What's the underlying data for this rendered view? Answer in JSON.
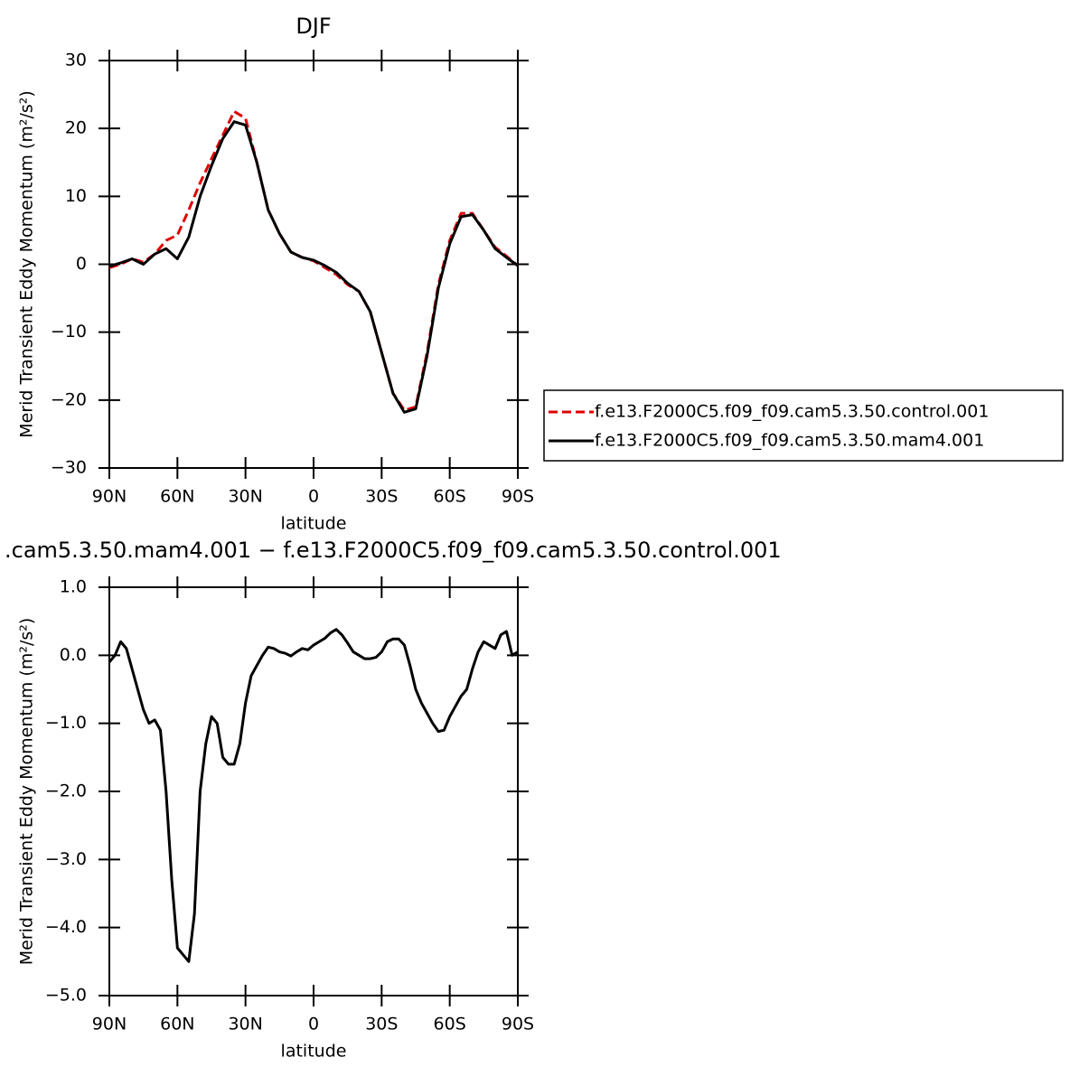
{
  "chart_data": [
    {
      "type": "line",
      "title": "DJF",
      "x_label": "latitude",
      "y_label": "Merid Transient Eddy Momentum (m²/s²)",
      "x": [
        90,
        85,
        80,
        75,
        70,
        65,
        60,
        55,
        50,
        45,
        40,
        35,
        30,
        25,
        20,
        15,
        10,
        5,
        0,
        -5,
        -10,
        -15,
        -20,
        -25,
        -30,
        -35,
        -40,
        -45,
        -50,
        -55,
        -60,
        -65,
        -70,
        -75,
        -80,
        -85,
        -90
      ],
      "series": [
        {
          "name": "f.e13.F2000C5.f09_f09.cam5.3.50.control.001",
          "color": "#e00000",
          "dashed": true,
          "values": [
            -0.5,
            0,
            0.8,
            0.3,
            1.5,
            3.5,
            4.3,
            8,
            12,
            15.5,
            19,
            22.5,
            21.5,
            15,
            8,
            4.5,
            1.8,
            1.0,
            0.5,
            -0.5,
            -1.5,
            -3,
            -4,
            -7,
            -13,
            -19,
            -21.5,
            -21,
            -13,
            -3,
            3.5,
            7.5,
            7.5,
            5,
            2.5,
            1.2,
            -0.2
          ]
        },
        {
          "name": "f.e13.F2000C5.f09_f09.cam5.3.50.mam4.001",
          "color": "#000000",
          "dashed": false,
          "values": [
            -0.3,
            0.2,
            0.8,
            0,
            1.5,
            2.3,
            0.8,
            4,
            10,
            14.5,
            18.5,
            21,
            20.5,
            15,
            8,
            4.5,
            1.8,
            1.0,
            0.6,
            -0.2,
            -1.2,
            -2.8,
            -4,
            -7,
            -13,
            -19,
            -21.8,
            -21.3,
            -13.5,
            -3.5,
            3,
            7,
            7.3,
            5,
            2.3,
            1,
            -0.2
          ]
        }
      ],
      "xlim": [
        90,
        -90
      ],
      "xticks": [
        {
          "value": 90,
          "label": "90N"
        },
        {
          "value": 60,
          "label": "60N"
        },
        {
          "value": 30,
          "label": "30N"
        },
        0,
        {
          "value": -30,
          "label": "30S"
        },
        {
          "value": -60,
          "label": "60S"
        },
        {
          "value": -90,
          "label": "90S"
        }
      ],
      "ylim": [
        -30,
        30
      ],
      "yticks": [
        {
          "value": -30,
          "label": "−30"
        },
        {
          "value": -20,
          "label": "−20"
        },
        {
          "value": -10,
          "label": "−10"
        },
        0,
        10,
        20,
        30
      ]
    },
    {
      "type": "line",
      "title": ".cam5.3.50.mam4.001 − f.e13.F2000C5.f09_f09.cam5.3.50.control.001",
      "x_label": "latitude",
      "y_label": "Merid Transient Eddy Momentum (m²/s²)",
      "x": [
        90,
        87.5,
        85,
        82.5,
        80,
        77.5,
        75,
        72.5,
        70,
        67.5,
        65,
        62.5,
        60,
        57.5,
        55,
        52.5,
        50,
        47.5,
        45,
        42.5,
        40,
        37.5,
        35,
        32.5,
        30,
        27.5,
        25,
        22.5,
        20,
        17.5,
        15,
        12.5,
        10,
        7.5,
        5,
        2.5,
        0,
        -2.5,
        -5,
        -7.5,
        -10,
        -12.5,
        -15,
        -17.5,
        -20,
        -22.5,
        -25,
        -27.5,
        -30,
        -32.5,
        -35,
        -37.5,
        -40,
        -42.5,
        -45,
        -47.5,
        -50,
        -52.5,
        -55,
        -57.5,
        -60,
        -62.5,
        -65,
        -67.5,
        -70,
        -72.5,
        -75,
        -77.5,
        -80,
        -82.5,
        -85,
        -87.5,
        -90
      ],
      "color": "#000000",
      "values": [
        -0.1,
        0.0,
        0.2,
        0.1,
        -0.2,
        -0.5,
        -0.8,
        -1.0,
        -0.95,
        -1.1,
        -2.0,
        -3.3,
        -4.3,
        -4.4,
        -4.5,
        -3.8,
        -2.0,
        -1.3,
        -0.9,
        -1.0,
        -1.5,
        -1.6,
        -1.6,
        -1.3,
        -0.7,
        -0.3,
        -0.15,
        0.0,
        0.12,
        0.1,
        0.05,
        0.03,
        -0.01,
        0.05,
        0.1,
        0.08,
        0.15,
        0.2,
        0.25,
        0.33,
        0.38,
        0.3,
        0.18,
        0.05,
        0.0,
        -0.05,
        -0.05,
        -0.03,
        0.05,
        0.2,
        0.24,
        0.24,
        0.15,
        -0.15,
        -0.5,
        -0.7,
        -0.85,
        -1.0,
        -1.12,
        -1.1,
        -0.9,
        -0.75,
        -0.6,
        -0.5,
        -0.2,
        0.05,
        0.2,
        0.15,
        0.1,
        0.3,
        0.35,
        0.0,
        0.05
      ],
      "xlim": [
        90,
        -90
      ],
      "xticks": [
        {
          "value": 90,
          "label": "90N"
        },
        {
          "value": 60,
          "label": "60N"
        },
        {
          "value": 30,
          "label": "30N"
        },
        0,
        {
          "value": -30,
          "label": "30S"
        },
        {
          "value": -60,
          "label": "60S"
        },
        {
          "value": -90,
          "label": "90S"
        }
      ],
      "ylim": [
        -5,
        1
      ],
      "yticks": [
        {
          "value": -5,
          "label": "−5.0"
        },
        {
          "value": -4,
          "label": "−4.0"
        },
        {
          "value": -3,
          "label": "−3.0"
        },
        {
          "value": -2,
          "label": "−2.0"
        },
        {
          "value": -1,
          "label": "−1.0"
        },
        {
          "value": 0,
          "label": "0.0"
        },
        {
          "value": 1,
          "label": "1.0"
        }
      ]
    }
  ]
}
